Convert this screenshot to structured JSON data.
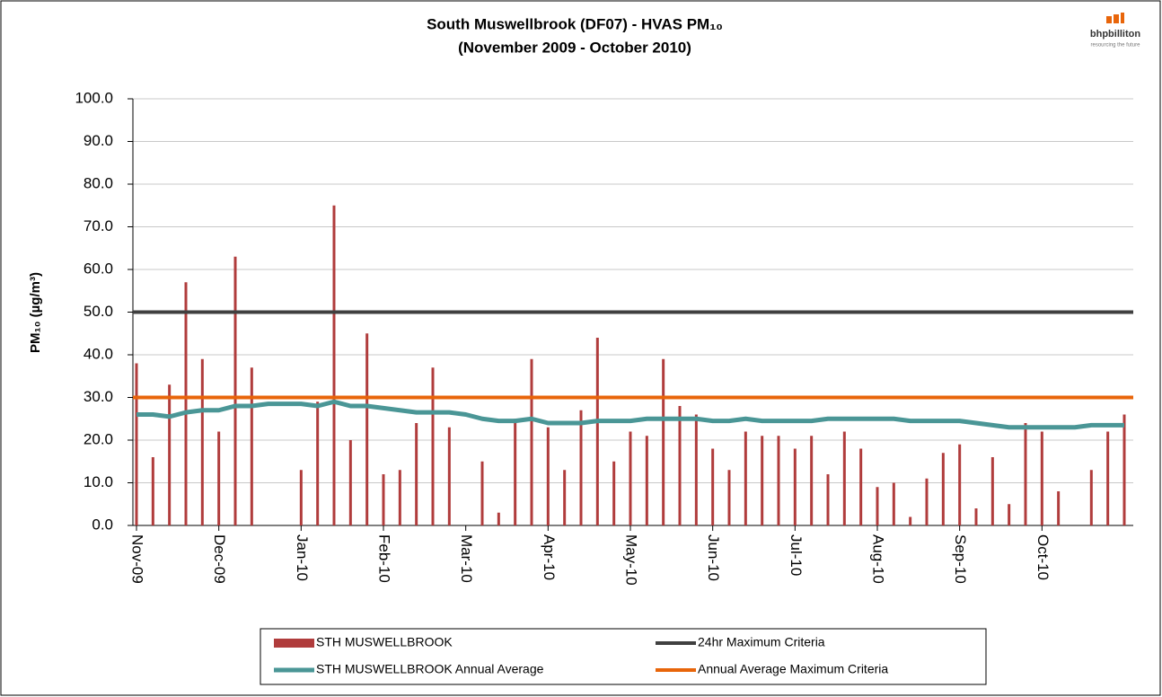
{
  "chart_data": {
    "type": "bar",
    "title": "South Muswellbrook (DF07) - HVAS PM₁₀",
    "subtitle": "(November 2009 - October 2010)",
    "y_label": "PM₁₀ (µg/m³)",
    "annotations": [
      "bhpbilliton",
      "resourcing the future"
    ],
    "categories": [
      "Nov-09",
      null,
      null,
      null,
      null,
      "Dec-09",
      null,
      null,
      null,
      null,
      "Jan-10",
      null,
      null,
      null,
      null,
      "Feb-10",
      null,
      null,
      null,
      null,
      "Mar-10",
      null,
      null,
      null,
      null,
      "Apr-10",
      null,
      null,
      null,
      null,
      "May-10",
      null,
      null,
      null,
      null,
      "Jun-10",
      null,
      null,
      null,
      null,
      "Jul-10",
      null,
      null,
      null,
      null,
      "Aug-10",
      null,
      null,
      null,
      null,
      "Sep-10",
      null,
      null,
      null,
      null,
      "Oct-10",
      null,
      null,
      null,
      null,
      null
    ],
    "series": [
      {
        "name": "STH MUSWELLBROOK",
        "type": "bar",
        "color": "#b03c3c",
        "values": [
          38,
          16,
          33,
          57,
          39,
          22,
          63,
          37,
          null,
          null,
          13,
          29,
          75,
          20,
          45,
          12,
          13,
          24,
          37,
          23,
          null,
          15,
          3,
          25,
          39,
          23,
          13,
          27,
          44,
          15,
          22,
          21,
          39,
          28,
          26,
          18,
          13,
          22,
          21,
          21,
          18,
          21,
          12,
          22,
          18,
          9,
          10,
          2,
          11,
          17,
          19,
          4,
          16,
          5,
          24,
          22,
          8,
          null,
          13,
          22,
          26
        ]
      },
      {
        "name": "STH MUSWELLBROOK Annual Average",
        "type": "line",
        "color": "#4a9696",
        "values": [
          26,
          26,
          25.5,
          26.5,
          27,
          27,
          28,
          28,
          28.5,
          28.5,
          28.5,
          28,
          29,
          28,
          28,
          27.5,
          27,
          26.5,
          26.5,
          26.5,
          26,
          25,
          24.5,
          24.5,
          25,
          24,
          24,
          24,
          24.5,
          24.5,
          24.5,
          25,
          25,
          25,
          25,
          24.5,
          24.5,
          25,
          24.5,
          24.5,
          24.5,
          24.5,
          25,
          25,
          25,
          25,
          25,
          24.5,
          24.5,
          24.5,
          24.5,
          24,
          23.5,
          23,
          23,
          23,
          23,
          23,
          23.5,
          23.5,
          23.5
        ]
      },
      {
        "name": "24hr Maximum Criteria",
        "type": "hline",
        "color": "#404040",
        "value": 50
      },
      {
        "name": "Annual Average Maximum Criteria",
        "type": "hline",
        "color": "#e8650a",
        "value": 30
      }
    ],
    "ylim": [
      0,
      100
    ],
    "yticks": [
      {
        "value": 0,
        "label": "0.0"
      },
      {
        "value": 10,
        "label": "10.0"
      },
      {
        "value": 20,
        "label": "20.0"
      },
      {
        "value": 30,
        "label": "30.0"
      },
      {
        "value": 40,
        "label": "40.0"
      },
      {
        "value": 50,
        "label": "50.0"
      },
      {
        "value": 60,
        "label": "60.0"
      },
      {
        "value": 70,
        "label": "70.0"
      },
      {
        "value": 80,
        "label": "80.0"
      },
      {
        "value": 90,
        "label": "90.0"
      },
      {
        "value": 100,
        "label": "100.0"
      }
    ],
    "grid": true
  }
}
